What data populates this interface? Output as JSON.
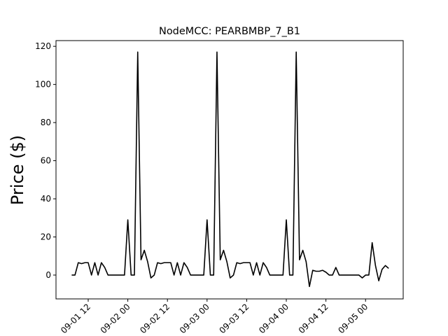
{
  "chart_data": {
    "type": "line",
    "title": "NodeMCC: PEARBMBP_7_B1",
    "y_label": "Price ($)",
    "color": "#000000",
    "x": [
      "09-01 07:00",
      "09-01 08:00",
      "09-01 09:00",
      "09-01 10:00",
      "09-01 11:00",
      "09-01 12:00",
      "09-01 13:00",
      "09-01 14:00",
      "09-01 15:00",
      "09-01 16:00",
      "09-01 17:00",
      "09-01 18:00",
      "09-01 19:00",
      "09-01 20:00",
      "09-01 21:00",
      "09-01 22:00",
      "09-01 23:00",
      "09-02 00:00",
      "09-02 01:00",
      "09-02 02:00",
      "09-02 03:00",
      "09-02 04:00",
      "09-02 05:00",
      "09-02 06:00",
      "09-02 07:00",
      "09-02 08:00",
      "09-02 09:00",
      "09-02 10:00",
      "09-02 11:00",
      "09-02 12:00",
      "09-02 13:00",
      "09-02 14:00",
      "09-02 15:00",
      "09-02 16:00",
      "09-02 17:00",
      "09-02 18:00",
      "09-02 19:00",
      "09-02 20:00",
      "09-02 21:00",
      "09-02 22:00",
      "09-02 23:00",
      "09-03 00:00",
      "09-03 01:00",
      "09-03 02:00",
      "09-03 03:00",
      "09-03 04:00",
      "09-03 05:00",
      "09-03 06:00",
      "09-03 07:00",
      "09-03 08:00",
      "09-03 09:00",
      "09-03 10:00",
      "09-03 11:00",
      "09-03 12:00",
      "09-03 13:00",
      "09-03 14:00",
      "09-03 15:00",
      "09-03 16:00",
      "09-03 17:00",
      "09-03 18:00",
      "09-03 19:00",
      "09-03 20:00",
      "09-03 21:00",
      "09-03 22:00",
      "09-03 23:00",
      "09-04 00:00",
      "09-04 01:00",
      "09-04 02:00",
      "09-04 03:00",
      "09-04 04:00",
      "09-04 05:00",
      "09-04 06:00",
      "09-04 07:00",
      "09-04 08:00",
      "09-04 09:00",
      "09-04 10:00",
      "09-04 11:00",
      "09-04 12:00",
      "09-04 13:00",
      "09-04 14:00",
      "09-04 15:00",
      "09-04 16:00",
      "09-04 17:00",
      "09-04 18:00",
      "09-04 19:00",
      "09-04 20:00",
      "09-04 21:00",
      "09-04 22:00",
      "09-04 23:00",
      "09-05 00:00",
      "09-05 01:00",
      "09-05 02:00",
      "09-05 03:00",
      "09-05 04:00",
      "09-05 05:00",
      "09-05 06:00",
      "09-05 07:00"
    ],
    "values": [
      0,
      0,
      6.5,
      6,
      6.5,
      6.5,
      0,
      6.5,
      0,
      6.5,
      4,
      0,
      0,
      0,
      0,
      0,
      0,
      29,
      0,
      0,
      117,
      8,
      13,
      7,
      -1.5,
      0,
      6.5,
      6,
      6.5,
      6.5,
      6.5,
      0,
      6.5,
      0,
      6.5,
      4,
      0,
      0,
      0,
      0,
      0,
      29,
      0,
      0,
      117,
      8,
      13,
      7,
      -1.5,
      0,
      6.5,
      6,
      6.5,
      6.5,
      6.5,
      0,
      6.5,
      0,
      6.5,
      4,
      0,
      0,
      0,
      0,
      0,
      29,
      0,
      0,
      117,
      8,
      13,
      7,
      -6,
      2.5,
      2,
      2,
      2.5,
      1.5,
      0,
      0,
      4,
      0,
      0,
      0,
      0,
      0,
      0,
      0,
      -1.5,
      0,
      0,
      17,
      5,
      -3,
      3,
      5,
      3.5
    ],
    "xlim": [
      "09-01 02:15",
      "09-05 11:24"
    ],
    "xticks": [
      {
        "value": "09-01 12:00",
        "label": "09-01 12"
      },
      {
        "value": "09-02 00:00",
        "label": "09-02 00"
      },
      {
        "value": "09-02 12:00",
        "label": "09-02 12"
      },
      {
        "value": "09-03 00:00",
        "label": "09-03 00"
      },
      {
        "value": "09-03 12:00",
        "label": "09-03 12"
      },
      {
        "value": "09-04 00:00",
        "label": "09-04 00"
      },
      {
        "value": "09-04 12:00",
        "label": "09-04 12"
      },
      {
        "value": "09-05 00:00",
        "label": "09-05 00"
      }
    ],
    "ylim": [
      -12.5,
      123
    ],
    "yticks": [
      0,
      20,
      40,
      60,
      80,
      100,
      120
    ],
    "grid": false
  }
}
